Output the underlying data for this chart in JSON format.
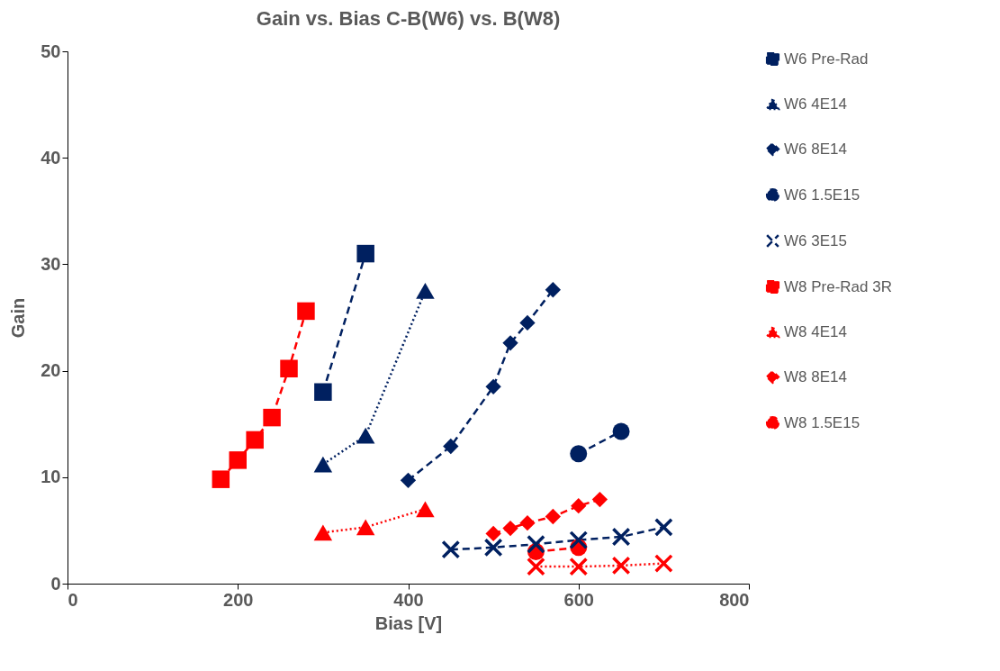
{
  "chart_data": {
    "type": "line",
    "title": "Gain vs. Bias C-B(W6) vs. B(W8)",
    "xlabel": "Bias [V]",
    "ylabel": "Gain",
    "xlim": [
      0,
      800
    ],
    "xticks": [
      0,
      200,
      400,
      600,
      800
    ],
    "ylim": [
      0,
      50
    ],
    "yticks": [
      0,
      10,
      20,
      30,
      40,
      50
    ],
    "grid": false,
    "legend": "right",
    "series": [
      {
        "name": "W6 Pre-Rad",
        "color": "#002060",
        "marker": "square",
        "line_style": "dashed",
        "x": [
          300,
          350
        ],
        "values": [
          18.0,
          31.0
        ]
      },
      {
        "name": "W6 4E14",
        "color": "#002060",
        "marker": "triangle",
        "line_style": "dotted",
        "x": [
          300,
          350,
          420
        ],
        "values": [
          11.2,
          13.9,
          27.5
        ]
      },
      {
        "name": "W6 8E14",
        "color": "#002060",
        "marker": "diamond",
        "line_style": "dashed",
        "x": [
          400,
          450,
          500,
          520,
          540,
          570
        ],
        "values": [
          9.7,
          12.9,
          18.5,
          22.6,
          24.5,
          27.6
        ]
      },
      {
        "name": "W6 1.5E15",
        "color": "#002060",
        "marker": "circle",
        "line_style": "dashed",
        "x": [
          600,
          650
        ],
        "values": [
          12.2,
          14.3
        ]
      },
      {
        "name": "W6 3E15",
        "color": "#002060",
        "marker": "cross",
        "line_style": "dashed",
        "x": [
          450,
          500,
          550,
          600,
          650,
          700
        ],
        "values": [
          3.2,
          3.4,
          3.7,
          4.1,
          4.4,
          5.3
        ]
      },
      {
        "name": "W8 Pre-Rad 3R",
        "color": "#ff0000",
        "marker": "square",
        "line_style": "dashed",
        "x": [
          180,
          200,
          220,
          240,
          260,
          280
        ],
        "values": [
          9.8,
          11.6,
          13.5,
          15.6,
          20.2,
          25.6
        ]
      },
      {
        "name": "W8 4E14",
        "color": "#ff0000",
        "marker": "triangle",
        "line_style": "dotted",
        "x": [
          300,
          350,
          420
        ],
        "values": [
          4.8,
          5.3,
          7.0
        ]
      },
      {
        "name": "W8 8E14",
        "color": "#ff0000",
        "marker": "diamond",
        "line_style": "dashed",
        "x": [
          500,
          520,
          540,
          570,
          600,
          625
        ],
        "values": [
          4.7,
          5.2,
          5.7,
          6.3,
          7.3,
          7.9
        ]
      },
      {
        "name": "W8 1.5E15",
        "color": "#ff0000",
        "marker": "circle",
        "line_style": "dashed",
        "x": [
          550,
          600
        ],
        "values": [
          3.0,
          3.4
        ]
      },
      {
        "color": "#ff0000",
        "marker": "cross",
        "line_style": "dotted",
        "x": [
          550,
          600,
          650,
          700
        ],
        "values": [
          1.6,
          1.6,
          1.7,
          1.9
        ]
      }
    ]
  }
}
